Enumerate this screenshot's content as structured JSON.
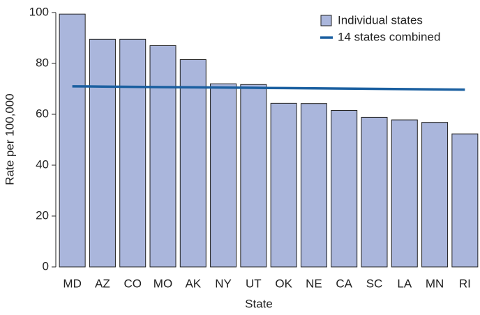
{
  "chart_data": {
    "type": "bar",
    "x_label": "State",
    "y_label": "Rate per 100,000",
    "categories": [
      "MD",
      "AZ",
      "CO",
      "MO",
      "AK",
      "NY",
      "UT",
      "OK",
      "NE",
      "CA",
      "SC",
      "LA",
      "MN",
      "RI"
    ],
    "series": [
      {
        "name": "Individual states",
        "type": "bar",
        "color": "#aab6dc",
        "values": [
          99.4,
          89.5,
          89.5,
          87.0,
          81.5,
          72.0,
          71.7,
          64.3,
          64.2,
          61.5,
          58.8,
          57.8,
          56.8,
          52.3
        ]
      },
      {
        "name": "14 states combined",
        "type": "line",
        "color": "#1a5fa0",
        "values": [
          71.0,
          70.9,
          70.8,
          70.7,
          70.6,
          70.5,
          70.4,
          70.3,
          70.2,
          70.1,
          70.0,
          69.9,
          69.8,
          69.7
        ]
      }
    ],
    "ylim": [
      0,
      100
    ],
    "yticks": [
      0,
      20,
      40,
      60,
      80,
      100
    ],
    "legend": "top-right"
  }
}
